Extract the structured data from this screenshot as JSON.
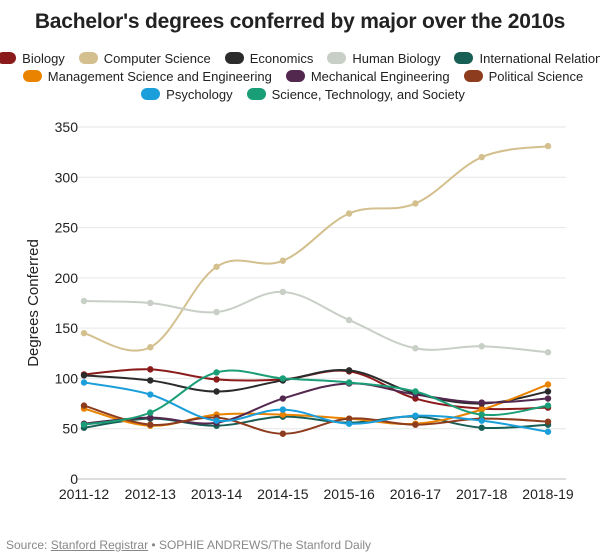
{
  "chart_data": {
    "type": "line",
    "title": "Bachelor's degrees conferred by major over the 2010s",
    "ylabel": "Degrees Conferred",
    "xlabel": "",
    "categories": [
      "2011-12",
      "2012-13",
      "2013-14",
      "2014-15",
      "2015-16",
      "2016-17",
      "2017-18",
      "2018-19"
    ],
    "ylim": [
      0,
      350
    ],
    "yticks": [
      0,
      50,
      100,
      150,
      200,
      250,
      300,
      350
    ],
    "grid": true,
    "legend_position": "top",
    "series": [
      {
        "name": "Biology",
        "color": "#8b1a1a",
        "values": [
          104,
          109,
          99,
          99,
          107,
          80,
          70,
          71
        ]
      },
      {
        "name": "Computer Science",
        "color": "#d4c08e",
        "values": [
          145,
          131,
          211,
          217,
          264,
          274,
          320,
          331
        ]
      },
      {
        "name": "Economics",
        "color": "#2b2b2b",
        "values": [
          103,
          98,
          87,
          98,
          108,
          85,
          75,
          87
        ]
      },
      {
        "name": "Human Biology",
        "color": "#c8cfc6",
        "values": [
          177,
          175,
          166,
          186,
          158,
          130,
          132,
          126
        ]
      },
      {
        "name": "International Relations",
        "color": "#175e54",
        "values": [
          51,
          60,
          53,
          62,
          56,
          62,
          51,
          54
        ]
      },
      {
        "name": "Management Science and Engineering",
        "color": "#e98300",
        "values": [
          70,
          53,
          64,
          64,
          60,
          55,
          69,
          94
        ]
      },
      {
        "name": "Mechanical Engineering",
        "color": "#53284f",
        "values": [
          55,
          61,
          56,
          80,
          95,
          84,
          76,
          80
        ]
      },
      {
        "name": "Political Science",
        "color": "#8d3c1e",
        "values": [
          73,
          54,
          61,
          45,
          60,
          54,
          60,
          57
        ]
      },
      {
        "name": "Psychology",
        "color": "#1a9fdb",
        "values": [
          96,
          84,
          58,
          69,
          55,
          63,
          58,
          47
        ]
      },
      {
        "name": "Science, Technology, and Society",
        "color": "#1a9e77",
        "values": [
          54,
          66,
          106,
          100,
          96,
          87,
          64,
          73
        ]
      }
    ]
  },
  "source": {
    "prefix": "Source: ",
    "link_text": "Stanford Registrar",
    "suffix": " • SOPHIE ANDREWS/The Stanford Daily"
  }
}
